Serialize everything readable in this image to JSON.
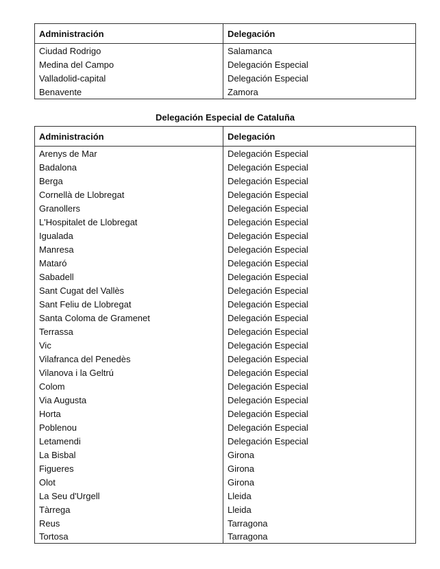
{
  "table1": {
    "headers": [
      "Administración",
      "Delegación"
    ],
    "rows": [
      [
        "Ciudad Rodrigo",
        "Salamanca"
      ],
      [
        "Medina del Campo",
        "Delegación Especial"
      ],
      [
        "Valladolid-capital",
        "Delegación Especial"
      ],
      [
        "Benavente",
        "Zamora"
      ]
    ]
  },
  "table2": {
    "title": "Delegación Especial de Cataluña",
    "headers": [
      "Administración",
      "Delegación"
    ],
    "rows": [
      [
        "Arenys de Mar",
        "Delegación Especial"
      ],
      [
        "Badalona",
        "Delegación Especial"
      ],
      [
        "Berga",
        "Delegación Especial"
      ],
      [
        "Cornellà de Llobregat",
        "Delegación Especial"
      ],
      [
        "Granollers",
        "Delegación Especial"
      ],
      [
        "L'Hospitalet de Llobregat",
        "Delegación Especial"
      ],
      [
        "Igualada",
        "Delegación Especial"
      ],
      [
        "Manresa",
        "Delegación Especial"
      ],
      [
        "Mataró",
        "Delegación Especial"
      ],
      [
        "Sabadell",
        "Delegación Especial"
      ],
      [
        "Sant Cugat del Vallès",
        "Delegación Especial"
      ],
      [
        "Sant Feliu de Llobregat",
        "Delegación Especial"
      ],
      [
        "Santa Coloma de Gramenet",
        "Delegación Especial"
      ],
      [
        "Terrassa",
        "Delegación Especial"
      ],
      [
        "Vic",
        "Delegación Especial"
      ],
      [
        "Vilafranca del Penedès",
        "Delegación Especial"
      ],
      [
        "Vilanova i la Geltrú",
        "Delegación Especial"
      ],
      [
        "Colom",
        "Delegación Especial"
      ],
      [
        "Via Augusta",
        "Delegación Especial"
      ],
      [
        "Horta",
        "Delegación Especial"
      ],
      [
        "Poblenou",
        "Delegación Especial"
      ],
      [
        "Letamendi",
        "Delegación Especial"
      ],
      [
        "La Bisbal",
        "Girona"
      ],
      [
        "Figueres",
        "Girona"
      ],
      [
        "Olot",
        "Girona"
      ],
      [
        "La Seu d'Urgell",
        "Lleida"
      ],
      [
        "Tàrrega",
        "Lleida"
      ],
      [
        "Reus",
        "Tarragona"
      ],
      [
        "Tortosa",
        "Tarragona"
      ]
    ]
  }
}
